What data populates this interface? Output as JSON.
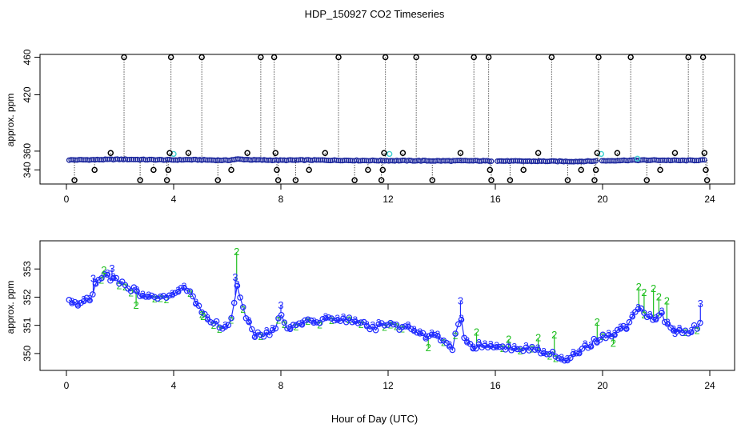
{
  "title": "HDP_150927  CO2 Timeseries",
  "xlabel": "Hour of Day (UTC)",
  "colors": {
    "raw": "#1f2a9e",
    "cyan": "#3fd0d0",
    "green": "#1fbf1f",
    "blue": "#1f2aff",
    "outlier": "#000000"
  },
  "chart_data": [
    {
      "type": "scatter",
      "name": "raw-panel",
      "ylabel": "approx. ppm",
      "xlim": [
        0,
        24
      ],
      "ylim": [
        325,
        463
      ],
      "xticks": [
        0,
        4,
        8,
        12,
        16,
        20,
        24
      ],
      "yticks": [
        340,
        360,
        420,
        460
      ],
      "baseline": [
        [
          0.1,
          350.6
        ],
        [
          1.0,
          350.8
        ],
        [
          2.0,
          351.3
        ],
        [
          3.0,
          350.9
        ],
        [
          4.0,
          350.6
        ],
        [
          4.5,
          350.9
        ],
        [
          5.0,
          350.7
        ],
        [
          6.0,
          350.2
        ],
        [
          6.4,
          351.5
        ],
        [
          7.0,
          350.6
        ],
        [
          8.0,
          350.3
        ],
        [
          9.0,
          350.5
        ],
        [
          10.0,
          350.3
        ],
        [
          11.0,
          350.0
        ],
        [
          12.0,
          349.9
        ],
        [
          13.0,
          349.8
        ],
        [
          14.0,
          349.6
        ],
        [
          15.0,
          349.7
        ],
        [
          16.0,
          349.5
        ],
        [
          17.0,
          349.3
        ],
        [
          18.0,
          349.2
        ],
        [
          19.0,
          349.0
        ],
        [
          20.0,
          349.6
        ],
        [
          21.0,
          350.3
        ],
        [
          22.0,
          350.4
        ],
        [
          23.0,
          350.0
        ],
        [
          23.8,
          350.4
        ]
      ],
      "gaps": [
        [
          15.85,
          16.0
        ],
        [
          19.8,
          19.95
        ]
      ],
      "outliers": [
        {
          "x": 0.3,
          "y": 329
        },
        {
          "x": 1.05,
          "y": 340
        },
        {
          "x": 1.65,
          "y": 358
        },
        {
          "x": 2.15,
          "y": 460
        },
        {
          "x": 2.75,
          "y": 329
        },
        {
          "x": 3.25,
          "y": 340
        },
        {
          "x": 3.75,
          "y": 329
        },
        {
          "x": 3.8,
          "y": 340
        },
        {
          "x": 3.85,
          "y": 358
        },
        {
          "x": 3.9,
          "y": 460
        },
        {
          "x": 4.55,
          "y": 358
        },
        {
          "x": 5.05,
          "y": 460
        },
        {
          "x": 5.65,
          "y": 329
        },
        {
          "x": 6.15,
          "y": 340
        },
        {
          "x": 6.75,
          "y": 358
        },
        {
          "x": 7.25,
          "y": 460
        },
        {
          "x": 7.75,
          "y": 460
        },
        {
          "x": 7.8,
          "y": 358
        },
        {
          "x": 7.85,
          "y": 340
        },
        {
          "x": 7.9,
          "y": 329
        },
        {
          "x": 8.55,
          "y": 329
        },
        {
          "x": 9.05,
          "y": 340
        },
        {
          "x": 9.65,
          "y": 358
        },
        {
          "x": 10.15,
          "y": 460
        },
        {
          "x": 10.75,
          "y": 329
        },
        {
          "x": 11.25,
          "y": 340
        },
        {
          "x": 11.75,
          "y": 329
        },
        {
          "x": 11.8,
          "y": 340
        },
        {
          "x": 11.85,
          "y": 358
        },
        {
          "x": 11.9,
          "y": 460
        },
        {
          "x": 12.55,
          "y": 358
        },
        {
          "x": 13.05,
          "y": 460
        },
        {
          "x": 13.65,
          "y": 329
        },
        {
          "x": 14.7,
          "y": 358
        },
        {
          "x": 15.2,
          "y": 460
        },
        {
          "x": 15.75,
          "y": 460
        },
        {
          "x": 15.8,
          "y": 340
        },
        {
          "x": 15.85,
          "y": 329
        },
        {
          "x": 16.55,
          "y": 329
        },
        {
          "x": 17.05,
          "y": 340
        },
        {
          "x": 17.6,
          "y": 358
        },
        {
          "x": 18.1,
          "y": 460
        },
        {
          "x": 18.7,
          "y": 329
        },
        {
          "x": 19.2,
          "y": 340
        },
        {
          "x": 19.7,
          "y": 329
        },
        {
          "x": 19.75,
          "y": 340
        },
        {
          "x": 19.8,
          "y": 358
        },
        {
          "x": 19.85,
          "y": 460
        },
        {
          "x": 20.55,
          "y": 358
        },
        {
          "x": 21.05,
          "y": 460
        },
        {
          "x": 21.65,
          "y": 329
        },
        {
          "x": 22.15,
          "y": 340
        },
        {
          "x": 22.7,
          "y": 358
        },
        {
          "x": 23.2,
          "y": 460
        },
        {
          "x": 23.75,
          "y": 460
        },
        {
          "x": 23.8,
          "y": 358
        },
        {
          "x": 23.85,
          "y": 340
        },
        {
          "x": 23.9,
          "y": 329
        }
      ],
      "cyan_points": [
        {
          "x": 4.0,
          "y": 357
        },
        {
          "x": 12.05,
          "y": 357
        },
        {
          "x": 19.95,
          "y": 357
        },
        {
          "x": 21.3,
          "y": 352
        }
      ]
    },
    {
      "type": "line",
      "name": "filtered-panel",
      "ylabel": "approx. ppm",
      "xlim": [
        0,
        24
      ],
      "ylim": [
        349.4,
        354.0
      ],
      "xticks": [
        0,
        4,
        8,
        12,
        16,
        20,
        24
      ],
      "yticks": [
        350,
        351,
        352,
        353
      ],
      "anchors": [
        [
          0.1,
          351.85
        ],
        [
          0.5,
          351.8
        ],
        [
          0.9,
          352.0
        ],
        [
          1.2,
          352.6
        ],
        [
          1.5,
          352.75
        ],
        [
          1.8,
          352.6
        ],
        [
          2.2,
          352.4
        ],
        [
          2.6,
          352.2
        ],
        [
          3.0,
          352.05
        ],
        [
          3.4,
          352.0
        ],
        [
          3.8,
          351.95
        ],
        [
          4.2,
          352.2
        ],
        [
          4.5,
          352.3
        ],
        [
          4.8,
          351.9
        ],
        [
          5.1,
          351.5
        ],
        [
          5.4,
          351.15
        ],
        [
          5.8,
          350.95
        ],
        [
          6.1,
          350.95
        ],
        [
          6.25,
          351.6
        ],
        [
          6.35,
          352.55
        ],
        [
          6.5,
          352.0
        ],
        [
          6.7,
          351.3
        ],
        [
          7.0,
          350.7
        ],
        [
          7.3,
          350.6
        ],
        [
          7.7,
          350.75
        ],
        [
          8.0,
          351.45
        ],
        [
          8.2,
          350.8
        ],
        [
          8.6,
          351.05
        ],
        [
          9.0,
          351.1
        ],
        [
          9.5,
          351.2
        ],
        [
          10.0,
          351.25
        ],
        [
          10.5,
          351.2
        ],
        [
          11.0,
          351.05
        ],
        [
          11.5,
          350.9
        ],
        [
          12.0,
          351.05
        ],
        [
          12.5,
          350.9
        ],
        [
          13.0,
          350.8
        ],
        [
          13.5,
          350.6
        ],
        [
          14.0,
          350.55
        ],
        [
          14.4,
          350.2
        ],
        [
          14.7,
          351.3
        ],
        [
          14.9,
          350.3
        ],
        [
          15.3,
          350.25
        ],
        [
          15.8,
          350.25
        ],
        [
          16.3,
          350.15
        ],
        [
          16.8,
          350.2
        ],
        [
          17.3,
          350.15
        ],
        [
          17.8,
          350.1
        ],
        [
          18.3,
          349.95
        ],
        [
          18.7,
          349.75
        ],
        [
          19.0,
          350.0
        ],
        [
          19.5,
          350.3
        ],
        [
          20.0,
          350.6
        ],
        [
          20.3,
          350.65
        ],
        [
          20.7,
          350.85
        ],
        [
          21.0,
          351.05
        ],
        [
          21.3,
          351.6
        ],
        [
          21.6,
          351.4
        ],
        [
          21.9,
          351.25
        ],
        [
          22.2,
          351.35
        ],
        [
          22.5,
          351.0
        ],
        [
          22.8,
          350.85
        ],
        [
          23.2,
          350.8
        ],
        [
          23.5,
          350.95
        ],
        [
          23.65,
          351.1
        ]
      ],
      "spikes": [
        {
          "x": 1.0,
          "y": 352.65,
          "label": "3",
          "series": "3"
        },
        {
          "x": 1.4,
          "y": 352.95,
          "label": "2",
          "series": "2"
        },
        {
          "x": 1.7,
          "y": 353.0,
          "label": "3",
          "series": "3"
        },
        {
          "x": 2.6,
          "y": 351.7,
          "label": "2",
          "series": "2"
        },
        {
          "x": 5.1,
          "y": 351.3,
          "label": "2",
          "series": "2"
        },
        {
          "x": 6.35,
          "y": 353.6,
          "label": "2",
          "series": "2"
        },
        {
          "x": 6.3,
          "y": 352.7,
          "label": "3",
          "series": "3"
        },
        {
          "x": 8.0,
          "y": 351.7,
          "label": "3",
          "series": "3"
        },
        {
          "x": 13.5,
          "y": 350.2,
          "label": "2",
          "series": "2"
        },
        {
          "x": 14.7,
          "y": 351.85,
          "label": "3",
          "series": "3"
        },
        {
          "x": 15.3,
          "y": 350.75,
          "label": "2",
          "series": "2"
        },
        {
          "x": 16.5,
          "y": 350.5,
          "label": "2",
          "series": "2"
        },
        {
          "x": 17.6,
          "y": 350.55,
          "label": "2",
          "series": "2"
        },
        {
          "x": 18.2,
          "y": 350.65,
          "label": "2",
          "series": "2"
        },
        {
          "x": 19.8,
          "y": 351.1,
          "label": "2",
          "series": "2"
        },
        {
          "x": 20.4,
          "y": 350.35,
          "label": "2",
          "series": "2"
        },
        {
          "x": 21.35,
          "y": 352.35,
          "label": "2",
          "series": "2"
        },
        {
          "x": 21.55,
          "y": 352.15,
          "label": "2",
          "series": "2"
        },
        {
          "x": 21.9,
          "y": 352.3,
          "label": "2",
          "series": "2"
        },
        {
          "x": 22.1,
          "y": 352.0,
          "label": "2",
          "series": "2"
        },
        {
          "x": 22.4,
          "y": 351.85,
          "label": "2",
          "series": "2"
        },
        {
          "x": 22.7,
          "y": 350.7,
          "label": "3",
          "series": "3"
        },
        {
          "x": 23.65,
          "y": 351.75,
          "label": "3",
          "series": "3"
        }
      ]
    }
  ]
}
